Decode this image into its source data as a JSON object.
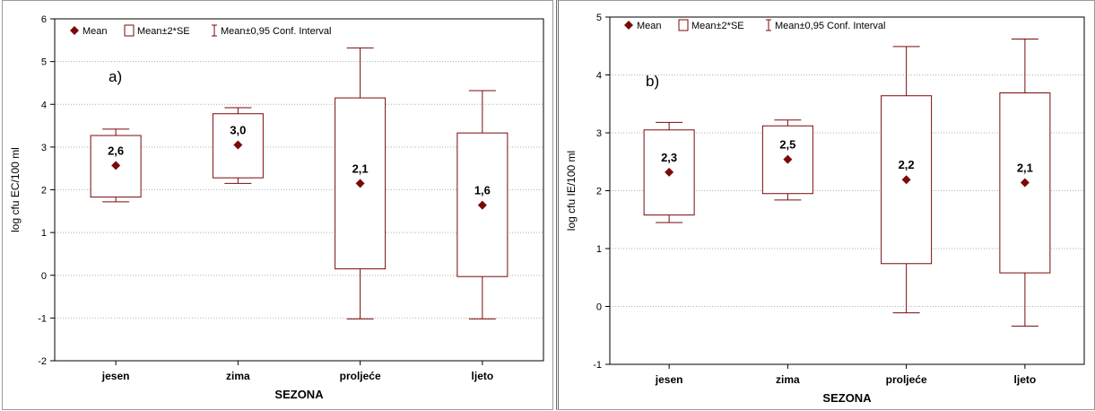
{
  "colors": {
    "series": "#7a0a0a",
    "grid": "#b0b0b0",
    "axis": "#000000"
  },
  "chart_data": [
    {
      "type": "box",
      "panel_label": "a)",
      "xlabel": "SEZONA",
      "ylabel": "log cfu EC/100 ml",
      "ylim": [
        -2,
        6
      ],
      "yticks": [
        -2,
        -1,
        0,
        1,
        2,
        3,
        4,
        5,
        6
      ],
      "grid": true,
      "legend": [
        "Mean",
        "Mean±2*SE",
        "Mean±0,95 Conf. Interval"
      ],
      "legend_position": "top-left",
      "categories": [
        "jesen",
        "zima",
        "proljeće",
        "ljeto"
      ],
      "series": [
        {
          "mean": 2.57,
          "mean_label": "2,6",
          "se2_low": 1.83,
          "se2_high": 3.27,
          "ci_low": 1.72,
          "ci_high": 3.42
        },
        {
          "mean": 3.05,
          "mean_label": "3,0",
          "se2_low": 2.28,
          "se2_high": 3.78,
          "ci_low": 2.15,
          "ci_high": 3.92
        },
        {
          "mean": 2.15,
          "mean_label": "2,1",
          "se2_low": 0.15,
          "se2_high": 4.15,
          "ci_low": -1.02,
          "ci_high": 5.32
        },
        {
          "mean": 1.64,
          "mean_label": "1,6",
          "se2_low": -0.03,
          "se2_high": 3.33,
          "ci_low": -1.02,
          "ci_high": 4.32
        }
      ]
    },
    {
      "type": "box",
      "panel_label": "b)",
      "xlabel": "SEZONA",
      "ylabel": "log cfu IE/100 ml",
      "ylim": [
        -1,
        5
      ],
      "yticks": [
        -1,
        0,
        1,
        2,
        3,
        4,
        5
      ],
      "grid": true,
      "legend": [
        "Mean",
        "Mean±2*SE",
        "Mean±0,95 Conf. Interval"
      ],
      "legend_position": "top-left",
      "categories": [
        "jesen",
        "zima",
        "proljeće",
        "ljeto"
      ],
      "series": [
        {
          "mean": 2.32,
          "mean_label": "2,3",
          "se2_low": 1.58,
          "se2_high": 3.05,
          "ci_low": 1.45,
          "ci_high": 3.18
        },
        {
          "mean": 2.54,
          "mean_label": "2,5",
          "se2_low": 1.95,
          "se2_high": 3.12,
          "ci_low": 1.84,
          "ci_high": 3.22
        },
        {
          "mean": 2.19,
          "mean_label": "2,2",
          "se2_low": 0.74,
          "se2_high": 3.64,
          "ci_low": -0.11,
          "ci_high": 4.49
        },
        {
          "mean": 2.14,
          "mean_label": "2,1",
          "se2_low": 0.58,
          "se2_high": 3.69,
          "ci_low": -0.34,
          "ci_high": 4.62
        }
      ]
    }
  ]
}
